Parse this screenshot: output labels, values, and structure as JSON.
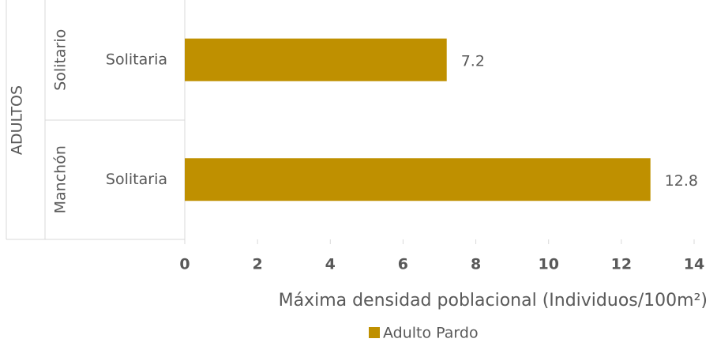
{
  "chart_data": {
    "type": "bar",
    "orientation": "horizontal",
    "outer_group": "ADULTOS",
    "category_groups": [
      "Solitario",
      "Manchón"
    ],
    "categories": [
      "Solitaria",
      "Solitaria"
    ],
    "series": [
      {
        "name": "Adulto Pardo",
        "color": "#bf9000",
        "values": [
          7.2,
          12.8
        ]
      }
    ],
    "xlim": [
      0,
      14
    ],
    "xticks": [
      0,
      2,
      4,
      6,
      8,
      10,
      12,
      14
    ],
    "xlabel": "Máxima densidad poblacional (Individuos/100m²)",
    "legend": "bottom"
  }
}
